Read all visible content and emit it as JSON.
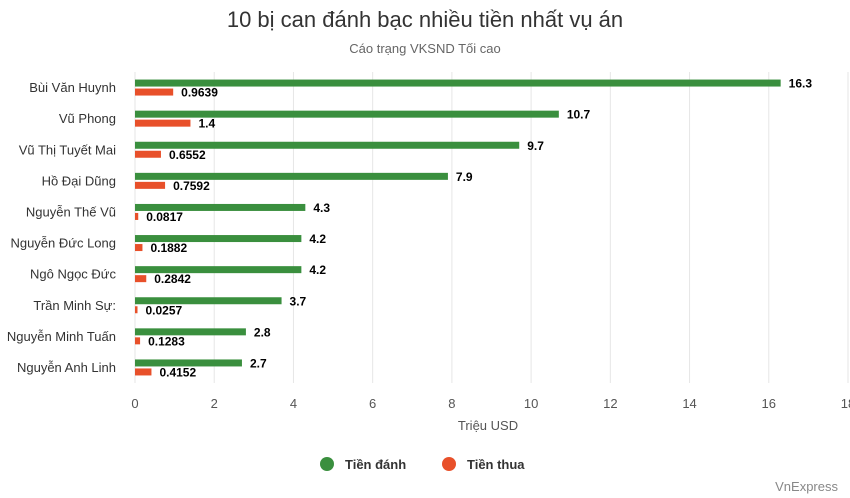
{
  "chart_data": {
    "type": "bar",
    "orientation": "horizontal",
    "title": "10 bị can đánh bạc nhiều tiền nhất vụ án",
    "subtitle": "Cáo trạng VKSND Tối cao",
    "categories": [
      "Bùi Văn Huynh",
      "Vũ Phong",
      "Vũ Thị Tuyết Mai",
      "Hồ Đại Dũng",
      "Nguyễn Thế Vũ",
      "Nguyễn Đức Long",
      "Ngô Ngọc Đức",
      "Trần Minh Sự:",
      "Nguyễn Minh Tuấn",
      "Nguyễn Anh Linh"
    ],
    "series": [
      {
        "name": "Tiền đánh",
        "color": "#3a8f3e",
        "values": [
          16.3,
          10.7,
          9.7,
          7.9,
          4.3,
          4.2,
          4.2,
          3.7,
          2.8,
          2.7
        ],
        "labels": [
          "16.3",
          "10.7",
          "9.7",
          "7.9",
          "4.3",
          "4.2",
          "4.2",
          "3.7",
          "2.8",
          "2.7"
        ]
      },
      {
        "name": "Tiền thua",
        "color": "#e8502a",
        "values": [
          0.9639,
          1.4,
          0.6552,
          0.7592,
          0.0817,
          0.1882,
          0.2842,
          0.0257,
          0.1283,
          0.4152
        ],
        "labels": [
          "0.9639",
          "1.4",
          "0.6552",
          "0.7592",
          "0.0817",
          "0.1882",
          "0.2842",
          "0.0257",
          "0.1283",
          "0.4152"
        ]
      }
    ],
    "xlabel": "Triệu USD",
    "xlim": [
      0,
      18
    ],
    "xticks": [
      0,
      2,
      4,
      6,
      8,
      10,
      12,
      14,
      16,
      18
    ],
    "grid": true,
    "legend_position": "bottom-center",
    "credit": "VnExpress"
  }
}
